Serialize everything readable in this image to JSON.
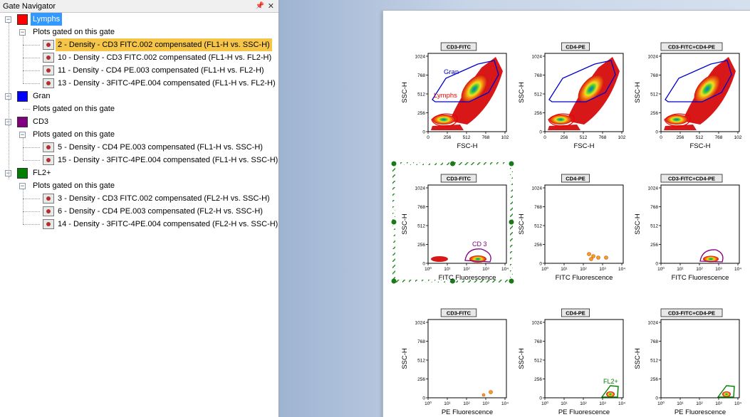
{
  "navigator": {
    "title": "Gate Navigator",
    "pin_icon": "pin-icon",
    "close_icon": "close-icon",
    "gates": [
      {
        "name": "Lymphs",
        "color": "#ff0000",
        "selected": true,
        "group_label": "Plots gated on this gate",
        "plots": [
          {
            "label": "2 - Density - CD3 FITC.002 compensated (FL1-H vs. SSC-H)",
            "highlight": true
          },
          {
            "label": "10 - Density - CD3 FITC.002 compensated (FL1-H vs. FL2-H)",
            "highlight": false
          },
          {
            "label": "11 - Density - CD4 PE.003 compensated (FL1-H vs. FL2-H)",
            "highlight": false
          },
          {
            "label": "13 - Density - 3FITC-4PE.004 compensated (FL1-H vs. FL2-H)",
            "highlight": false
          }
        ]
      },
      {
        "name": "Gran",
        "color": "#0000ff",
        "selected": false,
        "group_label": "Plots gated on this gate",
        "plots": []
      },
      {
        "name": "CD3",
        "color": "#800080",
        "selected": false,
        "group_label": "Plots gated on this gate",
        "plots": [
          {
            "label": "5 - Density - CD4 PE.003 compensated (FL1-H vs. SSC-H)",
            "highlight": false
          },
          {
            "label": "15 - Density - 3FITC-4PE.004 compensated (FL1-H vs. SSC-H)",
            "highlight": false
          }
        ]
      },
      {
        "name": "FL2+",
        "color": "#008000",
        "selected": false,
        "group_label": "Plots gated on this gate",
        "plots": [
          {
            "label": "3 - Density - CD3 FITC.002 compensated (FL2-H vs. SSC-H)",
            "highlight": false
          },
          {
            "label": "6 - Density - CD4 PE.003 compensated (FL2-H vs. SSC-H)",
            "highlight": false
          },
          {
            "label": "14 - Density - 3FITC-4PE.004 compensated (FL2-H vs. SSC-H)",
            "highlight": false
          }
        ]
      }
    ]
  },
  "plots": {
    "ylabel": "SSC-H",
    "yticks": [
      "0",
      "256",
      "512",
      "768",
      "1024"
    ],
    "linear_xticks": [
      "0",
      "256",
      "512",
      "768",
      "102"
    ],
    "log_xticks": [
      "10⁰",
      "10¹",
      "10²",
      "10³",
      "10⁴"
    ],
    "rows": [
      {
        "type": "scatter",
        "xlabel": "FSC-H",
        "panels": [
          {
            "title": "CD3-FITC",
            "gates": [
              {
                "label": "Gran",
                "color": "#0000cc"
              },
              {
                "label": "Lymphs",
                "color": "#ee0000"
              }
            ]
          },
          {
            "title": "CD4-PE",
            "gates": []
          },
          {
            "title": "CD3-FITC+CD4-PE",
            "gates": []
          }
        ]
      },
      {
        "type": "fitc",
        "xlabel": "FITC Fluorescence",
        "panels": [
          {
            "title": "CD3-FITC",
            "selected": true,
            "gates": [
              {
                "label": "CD 3",
                "color": "#800080"
              }
            ]
          },
          {
            "title": "CD4-PE",
            "gates": []
          },
          {
            "title": "CD3-FITC+CD4-PE",
            "gates": []
          }
        ]
      },
      {
        "type": "pe",
        "xlabel": "PE Fluorescence",
        "panels": [
          {
            "title": "CD3-FITC",
            "gates": []
          },
          {
            "title": "CD4-PE",
            "gates": [
              {
                "label": "FL2+",
                "color": "#008000"
              }
            ]
          },
          {
            "title": "CD3-FITC+CD4-PE",
            "gates": []
          }
        ]
      }
    ]
  }
}
